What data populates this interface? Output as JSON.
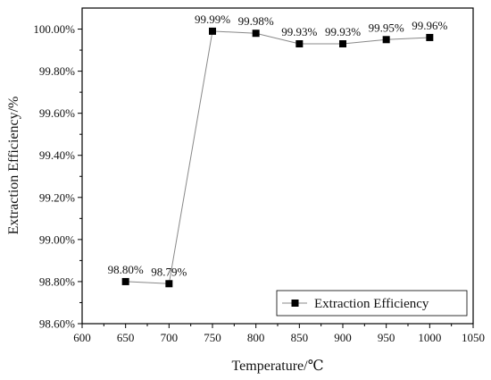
{
  "chart_data": {
    "type": "line",
    "xlabel": "Temperature/℃",
    "ylabel": "Extraction Efficiency/%",
    "xlim": [
      600,
      1050
    ],
    "ylim": [
      98.6,
      100.1
    ],
    "x_ticks": [
      600,
      650,
      700,
      750,
      800,
      850,
      900,
      950,
      1000,
      1050
    ],
    "y_ticks": [
      98.6,
      98.8,
      99.0,
      99.2,
      99.4,
      99.6,
      99.8,
      100.0
    ],
    "x_tick_labels": [
      "600",
      "650",
      "700",
      "750",
      "800",
      "850",
      "900",
      "950",
      "1000",
      "1050"
    ],
    "y_tick_labels": [
      "98.60%",
      "98.80%",
      "99.00%",
      "99.20%",
      "99.40%",
      "99.60%",
      "99.80%",
      "100.00%"
    ],
    "grid": false,
    "legend_position": "bottom-right",
    "series": [
      {
        "name": "Extraction Efficiency",
        "color": "#000000",
        "marker": "square",
        "x": [
          650,
          700,
          750,
          800,
          850,
          900,
          950,
          1000
        ],
        "y": [
          98.8,
          98.79,
          99.99,
          99.98,
          99.93,
          99.93,
          99.95,
          99.96
        ],
        "labels": [
          "98.80%",
          "98.79%",
          "99.99%",
          "99.98%",
          "99.93%",
          "99.93%",
          "99.95%",
          "99.96%"
        ]
      }
    ]
  }
}
